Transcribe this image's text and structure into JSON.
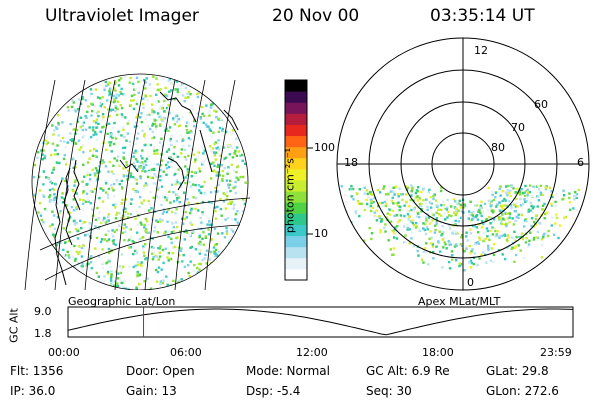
{
  "header": {
    "instrument": "Ultraviolet Imager",
    "date": "20 Nov 00",
    "time": "03:35:14 UT"
  },
  "colorbar": {
    "unit_label": "photon cm⁻²s⁻¹",
    "ticks": [
      "100",
      "10"
    ],
    "colors": [
      "#ffffff",
      "#e6f2f8",
      "#b8e2f0",
      "#7ccfe8",
      "#3cc8c8",
      "#2ec88a",
      "#50d246",
      "#8ee03a",
      "#c8ec30",
      "#eef028",
      "#ffd21e",
      "#ffa014",
      "#ff6414",
      "#e6281e",
      "#b41e3c",
      "#78145a",
      "#3c0a50",
      "#000000"
    ]
  },
  "globe": {
    "label": "Geographic Lat/Lon"
  },
  "polar": {
    "label": "Apex MLat/MLT",
    "mlt_labels": [
      "12",
      "18",
      "6",
      "0"
    ],
    "mlat_labels": [
      "60",
      "70",
      "80"
    ]
  },
  "timeline": {
    "axis_label": "GC Alt",
    "y_labels": [
      "9.0",
      "1.8"
    ],
    "x_labels": [
      "00:00",
      "06:00",
      "12:00",
      "18:00",
      "23:59"
    ],
    "marker_time_hours": 3.59,
    "marker_color": "#ff0000"
  },
  "info": {
    "flt": "Flt: 1356",
    "ip": "IP: 36.0",
    "door": "Door: Open",
    "gain": "Gain: 13",
    "mode": "Mode: Normal",
    "dsp": "Dsp:   -5.4",
    "gcalt": "GC Alt: 6.9 Re",
    "seq": "Seq: 30",
    "glat": "GLat:  29.8",
    "glon": "GLon: 272.6"
  }
}
